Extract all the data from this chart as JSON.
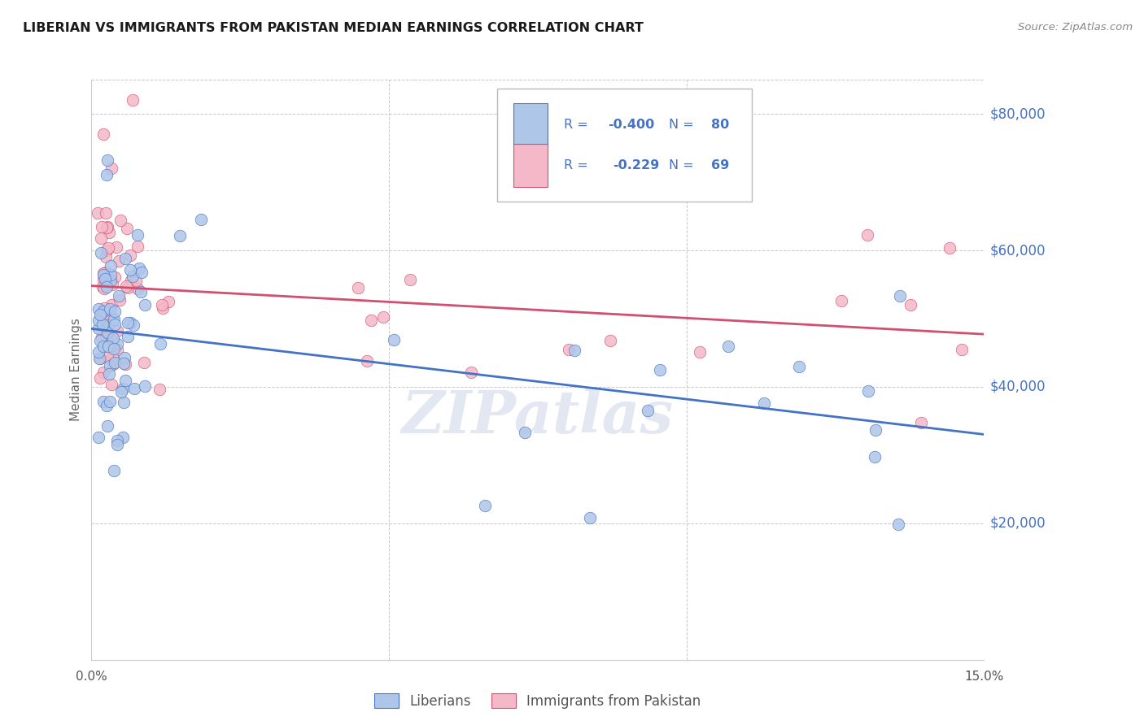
{
  "title": "LIBERIAN VS IMMIGRANTS FROM PAKISTAN MEDIAN EARNINGS CORRELATION CHART",
  "source": "Source: ZipAtlas.com",
  "ylabel": "Median Earnings",
  "color_blue": "#aec6e8",
  "color_blue_line": "#4472c4",
  "color_pink": "#f4b8c8",
  "color_pink_line": "#d05070",
  "color_labels": "#4472c4",
  "background_color": "#ffffff",
  "grid_color": "#c8c8c8",
  "watermark": "ZIPatlas",
  "bottom_label_1": "Liberians",
  "bottom_label_2": "Immigrants from Pakistan"
}
